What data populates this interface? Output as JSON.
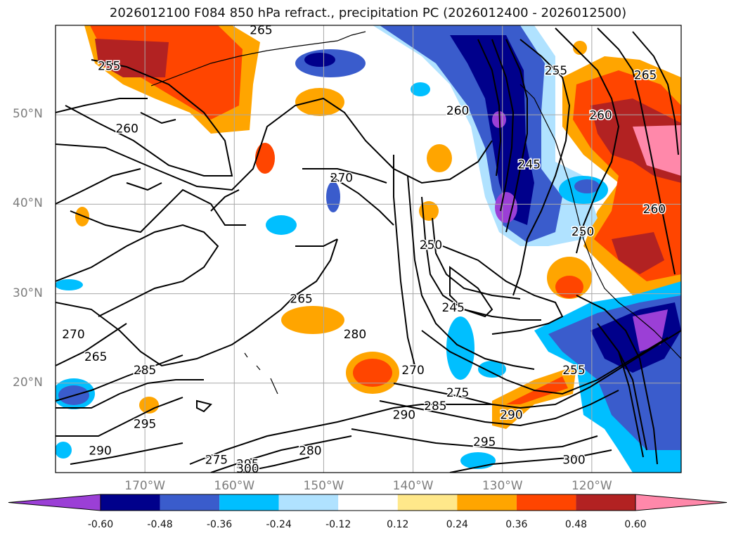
{
  "title": "2026012100 F084 850 hPa refract., precipitation PC (2026012400 - 2026012500)",
  "map": {
    "projection": "lat-lon",
    "lon_range": [
      -180,
      -110
    ],
    "lat_range": [
      10,
      60
    ],
    "lat_ticks": [
      {
        "label": "50°N",
        "lat": 50
      },
      {
        "label": "40°N",
        "lat": 40
      },
      {
        "label": "30°N",
        "lat": 30
      },
      {
        "label": "20°N",
        "lat": 20
      }
    ],
    "lon_ticks": [
      {
        "label": "170°W",
        "lon": -170
      },
      {
        "label": "160°W",
        "lon": -160
      },
      {
        "label": "150°W",
        "lon": -150
      },
      {
        "label": "140°W",
        "lon": -140
      },
      {
        "label": "130°W",
        "lon": -130
      },
      {
        "label": "120°W",
        "lon": -120
      }
    ],
    "grid": true,
    "contour_labels": [
      {
        "text": "255",
        "lon": -174,
        "lat": 55
      },
      {
        "text": "265",
        "lon": -157,
        "lat": 59
      },
      {
        "text": "260",
        "lon": -172,
        "lat": 48
      },
      {
        "text": "270",
        "lon": -148,
        "lat": 42.5
      },
      {
        "text": "260",
        "lon": -135,
        "lat": 50
      },
      {
        "text": "255",
        "lon": -124,
        "lat": 54.5
      },
      {
        "text": "260",
        "lon": -119,
        "lat": 49.5
      },
      {
        "text": "265",
        "lon": -114,
        "lat": 54
      },
      {
        "text": "245",
        "lon": -127,
        "lat": 44
      },
      {
        "text": "250",
        "lon": -121,
        "lat": 36.5
      },
      {
        "text": "260",
        "lon": -113,
        "lat": 39
      },
      {
        "text": "250",
        "lon": -138,
        "lat": 35
      },
      {
        "text": "245",
        "lon": -135.5,
        "lat": 28
      },
      {
        "text": "265",
        "lon": -152.5,
        "lat": 29
      },
      {
        "text": "280",
        "lon": -146.5,
        "lat": 25
      },
      {
        "text": "270",
        "lon": -140,
        "lat": 21
      },
      {
        "text": "275",
        "lon": -135,
        "lat": 18.5
      },
      {
        "text": "285",
        "lon": -137.5,
        "lat": 17
      },
      {
        "text": "290",
        "lon": -141,
        "lat": 16
      },
      {
        "text": "290",
        "lon": -129,
        "lat": 16
      },
      {
        "text": "255",
        "lon": -122,
        "lat": 21
      },
      {
        "text": "270",
        "lon": -178,
        "lat": 25
      },
      {
        "text": "265",
        "lon": -175.5,
        "lat": 22.5
      },
      {
        "text": "285",
        "lon": -170,
        "lat": 21
      },
      {
        "text": "295",
        "lon": -170,
        "lat": 15
      },
      {
        "text": "290",
        "lon": -175,
        "lat": 12
      },
      {
        "text": "280",
        "lon": -151.5,
        "lat": 12
      },
      {
        "text": "275",
        "lon": -162,
        "lat": 11
      },
      {
        "text": "295",
        "lon": -158.5,
        "lat": 10.5
      },
      {
        "text": "300",
        "lon": -158.5,
        "lat": 10
      },
      {
        "text": "295",
        "lon": -132,
        "lat": 13
      },
      {
        "text": "300",
        "lon": -122,
        "lat": 11
      }
    ]
  },
  "colorbar": {
    "levels": [
      "-0.60",
      "-0.48",
      "-0.36",
      "-0.24",
      "-0.12",
      "0.12",
      "0.24",
      "0.36",
      "0.48",
      "0.60"
    ],
    "colors": [
      "#9b3fd6",
      "#00008b",
      "#3a5ccc",
      "#00bfff",
      "#b0e2ff",
      "#ffffff",
      "#ffe88a",
      "#ffa500",
      "#ff4500",
      "#b22222",
      "#ff88aa"
    ]
  }
}
